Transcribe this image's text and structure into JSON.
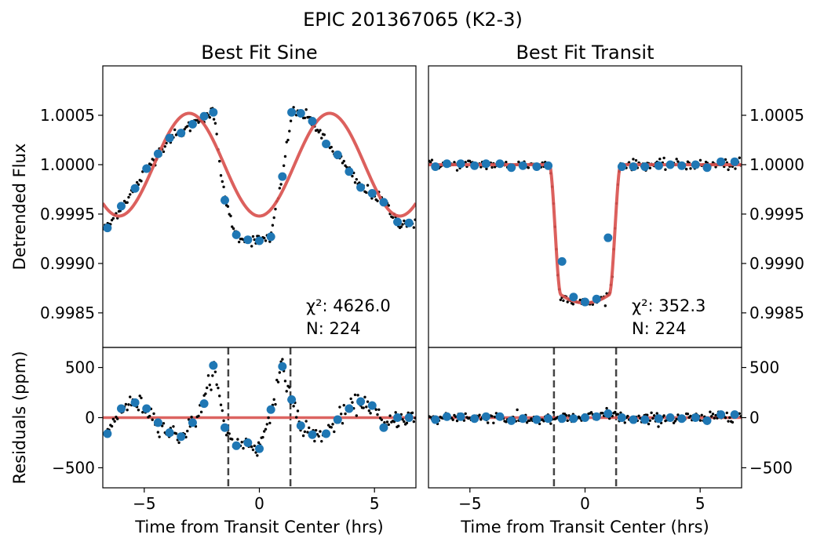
{
  "figure": {
    "suptitle": "EPIC 201367065 (K2-3)"
  },
  "chart_data": [
    {
      "id": "sine-flux",
      "type": "scatter",
      "title": "Best Fit Sine",
      "xlabel": "",
      "ylabel": "Detrended Flux",
      "xlim": [
        -6.8,
        6.8
      ],
      "ylim": [
        0.99815,
        1.001
      ],
      "yticks": [
        0.9985,
        0.999,
        0.9995,
        1.0,
        1.0005
      ],
      "ytick_labels": [
        "0.9985",
        "0.9990",
        "0.9995",
        "1.0000",
        "1.0005"
      ],
      "ytick_side": "left",
      "annotation": {
        "chi2_label": "χ²: 4626.0",
        "n_label": "N: 224"
      },
      "model": {
        "name": "sine",
        "amplitude": 0.00052,
        "period_hrs": 6.1,
        "peak_x": -3.05,
        "color": "#d9534f"
      },
      "binned": {
        "color": "#1f77b4",
        "x": [
          -6.6,
          -6.0,
          -5.4,
          -4.9,
          -4.4,
          -3.9,
          -3.4,
          -2.9,
          -2.4,
          -2.0,
          -1.5,
          -1.0,
          -0.5,
          0.0,
          0.5,
          1.0,
          1.4,
          1.8,
          2.3,
          2.9,
          3.4,
          3.9,
          4.4,
          4.9,
          5.4,
          6.0,
          6.5
        ],
        "y": [
          0.99936,
          0.99958,
          0.99976,
          0.99996,
          1.00011,
          1.00027,
          1.00032,
          1.00041,
          1.00049,
          1.00053,
          0.99964,
          0.99929,
          0.99924,
          0.99923,
          0.99927,
          0.99988,
          1.00053,
          1.00052,
          1.00044,
          1.00021,
          1.0001,
          0.99993,
          0.99977,
          0.99971,
          0.99962,
          0.99942,
          0.99941
        ]
      }
    },
    {
      "id": "transit-flux",
      "type": "scatter",
      "title": "Best Fit Transit",
      "xlabel": "",
      "ylabel": "",
      "xlim": [
        -6.8,
        6.8
      ],
      "ylim": [
        0.99815,
        1.001
      ],
      "yticks": [
        0.9985,
        0.999,
        0.9995,
        1.0,
        1.0005
      ],
      "ytick_labels": [
        "0.9985",
        "0.9990",
        "0.9995",
        "1.0000",
        "1.0005"
      ],
      "ytick_side": "right",
      "annotation": {
        "chi2_label": "χ²: 352.3",
        "n_label": "N: 224"
      },
      "model": {
        "name": "transit",
        "baseline": 1.0,
        "depth": 0.0014,
        "t1": 1.55,
        "t2": 1.05,
        "color": "#d9534f"
      },
      "binned": {
        "color": "#1f77b4",
        "x": [
          -6.5,
          -6.0,
          -5.4,
          -4.8,
          -4.3,
          -3.7,
          -3.2,
          -2.7,
          -2.1,
          -1.6,
          -1.0,
          -0.5,
          0.0,
          0.5,
          1.0,
          1.6,
          2.1,
          2.6,
          3.2,
          3.7,
          4.2,
          4.8,
          5.3,
          5.9,
          6.5
        ],
        "y": [
          0.99998,
          1.00001,
          1.00001,
          0.99999,
          1.00001,
          1.00001,
          0.99997,
          0.99999,
          0.99998,
          0.99999,
          0.99902,
          0.99866,
          0.99861,
          0.99864,
          0.99926,
          0.99998,
          0.99998,
          0.99998,
          0.99999,
          1.0,
          0.99999,
          1.0,
          0.99997,
          1.00003,
          1.00003
        ]
      }
    },
    {
      "id": "sine-resid",
      "type": "scatter",
      "title": "",
      "xlabel": "Time from Transit Center (hrs)",
      "ylabel": "Residuals (ppm)",
      "xlim": [
        -6.8,
        6.8
      ],
      "ylim": [
        -700,
        700
      ],
      "xticks": [
        -5,
        0,
        5
      ],
      "xtick_labels": [
        "−5",
        "0",
        "5"
      ],
      "yticks": [
        -500,
        0,
        500
      ],
      "ytick_labels": [
        "−500",
        "0",
        "500"
      ],
      "ytick_side": "left",
      "transit_edges": [
        -1.35,
        1.35
      ],
      "zero_line_color": "#d9534f",
      "binned": {
        "color": "#1f77b4",
        "x": [
          -6.6,
          -6.0,
          -5.4,
          -4.9,
          -4.4,
          -3.9,
          -3.4,
          -2.9,
          -2.4,
          -2.0,
          -1.5,
          -1.0,
          -0.5,
          0.0,
          0.5,
          1.0,
          1.4,
          1.8,
          2.3,
          2.9,
          3.4,
          3.9,
          4.4,
          4.9,
          5.4,
          6.0,
          6.5
        ],
        "y": [
          -160,
          90,
          150,
          90,
          -50,
          -150,
          -190,
          -50,
          140,
          520,
          -100,
          -280,
          -250,
          -310,
          80,
          510,
          180,
          -80,
          -170,
          -160,
          -20,
          90,
          160,
          120,
          -100,
          0,
          0
        ]
      }
    },
    {
      "id": "transit-resid",
      "type": "scatter",
      "title": "",
      "xlabel": "Time from Transit Center (hrs)",
      "ylabel": "",
      "xlim": [
        -6.8,
        6.8
      ],
      "ylim": [
        -700,
        700
      ],
      "xticks": [
        -5,
        0,
        5
      ],
      "xtick_labels": [
        "−5",
        "0",
        "5"
      ],
      "yticks": [
        -500,
        0,
        500
      ],
      "ytick_labels": [
        "−500",
        "0",
        "500"
      ],
      "ytick_side": "right",
      "transit_edges": [
        -1.35,
        1.35
      ],
      "zero_line_color": "#d9534f",
      "binned": {
        "color": "#1f77b4",
        "x": [
          -6.5,
          -6.0,
          -5.4,
          -4.8,
          -4.3,
          -3.7,
          -3.2,
          -2.7,
          -2.1,
          -1.6,
          -1.0,
          -0.5,
          0.0,
          0.5,
          1.0,
          1.6,
          2.1,
          2.6,
          3.2,
          3.7,
          4.2,
          4.8,
          5.3,
          5.9,
          6.5
        ],
        "y": [
          -20,
          10,
          10,
          -10,
          10,
          10,
          -30,
          -10,
          -20,
          -10,
          -10,
          -10,
          0,
          10,
          40,
          0,
          -20,
          -20,
          -10,
          0,
          -10,
          0,
          -30,
          30,
          30
        ]
      }
    }
  ]
}
